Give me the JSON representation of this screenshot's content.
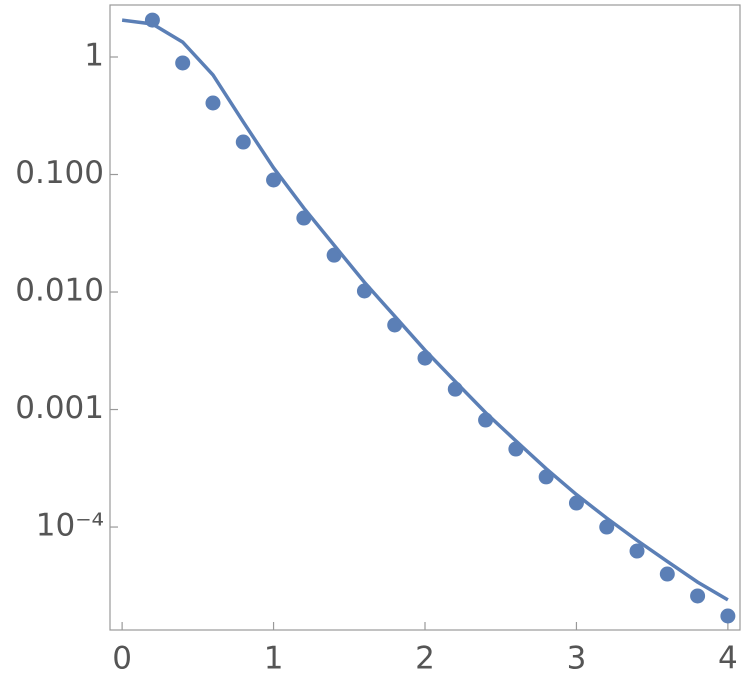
{
  "chart_data": {
    "type": "scatter",
    "x": [
      0.2,
      0.4,
      0.6,
      0.8,
      1.0,
      1.2,
      1.4,
      1.6,
      1.8,
      2.0,
      2.2,
      2.4,
      2.6,
      2.8,
      3.0,
      3.2,
      3.4,
      3.6,
      3.8,
      4.0
    ],
    "series": [
      {
        "type": "scatter",
        "color": "#5b7fb6",
        "x": [
          0.2,
          0.4,
          0.6,
          0.8,
          1.0,
          1.2,
          1.4,
          1.6,
          1.8,
          2.0,
          2.2,
          2.4,
          2.6,
          2.8,
          3.0,
          3.2,
          3.4,
          3.6,
          3.8,
          4.0
        ],
        "values": [
          2.06,
          0.89,
          0.406,
          0.189,
          0.0898,
          0.0426,
          0.0206,
          0.0102,
          0.00524,
          0.00274,
          0.00149,
          0.000814,
          0.000461,
          0.000267,
          0.00016,
          0.0001,
          6.25e-05,
          3.98e-05,
          2.59e-05,
          1.75e-05
        ]
      },
      {
        "type": "line",
        "color": "#5b7fb6",
        "x": [
          0,
          0.2,
          0.4,
          0.6,
          0.8,
          1.0,
          1.2,
          1.4,
          1.6,
          1.8,
          2.0,
          2.2,
          2.4,
          2.6,
          2.8,
          3.0,
          3.2,
          3.4,
          3.6,
          3.8,
          4.0
        ],
        "values": [
          2.06,
          1.91,
          1.34,
          0.703,
          0.28,
          0.114,
          0.0518,
          0.025,
          0.0121,
          0.00623,
          0.0032,
          0.00173,
          0.000941,
          0.000541,
          0.000314,
          0.000189,
          0.000119,
          7.7e-05,
          5.1e-05,
          3.4e-05,
          2.4e-05
        ]
      }
    ],
    "xlim": [
      -0.08,
      4.08
    ],
    "ylim": [
      1.33e-05,
      2.77
    ],
    "log_y": true,
    "xticks": [
      0,
      1,
      2,
      3,
      4
    ],
    "yticks": [
      {
        "value": 1,
        "label": "1"
      },
      {
        "value": 0.1,
        "label": "0.100"
      },
      {
        "value": 0.01,
        "label": "0.010"
      },
      {
        "value": 0.001,
        "label": "0.001"
      },
      {
        "value": 0.0001,
        "label": "10⁻⁴"
      }
    ],
    "grid": false
  }
}
